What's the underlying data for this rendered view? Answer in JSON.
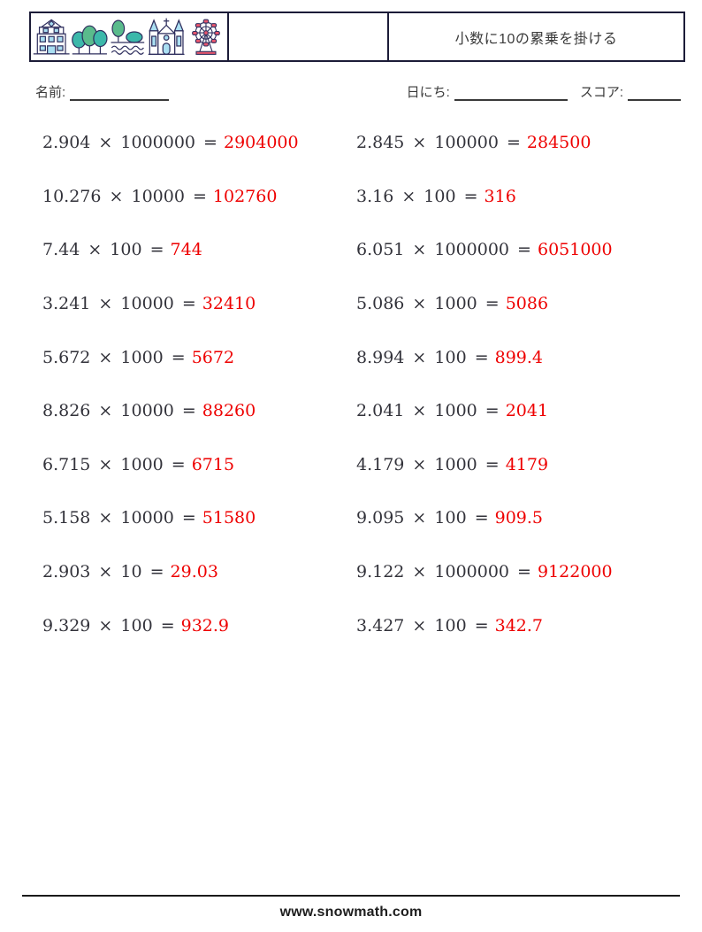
{
  "header": {
    "title": "小数に10の累乗を掛ける",
    "logo_icons": [
      "building-icon",
      "trees-icon",
      "tree-bush-water-icon",
      "church-icon",
      "ferris-wheel-icon"
    ]
  },
  "fields": {
    "name_label": "名前:",
    "date_label": "日にち:",
    "score_label": "スコア:"
  },
  "problems": {
    "left": [
      {
        "expression": "2.904 × 1000000 =",
        "answer": "2904000"
      },
      {
        "expression": "10.276 × 10000 =",
        "answer": "102760"
      },
      {
        "expression": "7.44 × 100 =",
        "answer": "744"
      },
      {
        "expression": "3.241 × 10000 =",
        "answer": "32410"
      },
      {
        "expression": "5.672 × 1000 =",
        "answer": "5672"
      },
      {
        "expression": "8.826 × 10000 =",
        "answer": "88260"
      },
      {
        "expression": "6.715 × 1000 =",
        "answer": "6715"
      },
      {
        "expression": "5.158 × 10000 =",
        "answer": "51580"
      },
      {
        "expression": "2.903 × 10 =",
        "answer": "29.03"
      },
      {
        "expression": "9.329 × 100 =",
        "answer": "932.9"
      }
    ],
    "right": [
      {
        "expression": "2.845 × 100000 =",
        "answer": "284500"
      },
      {
        "expression": "3.16 × 100 =",
        "answer": "316"
      },
      {
        "expression": "6.051 × 1000000 =",
        "answer": "6051000"
      },
      {
        "expression": "5.086 × 1000 =",
        "answer": "5086"
      },
      {
        "expression": "8.994 × 100 =",
        "answer": "899.4"
      },
      {
        "expression": "2.041 × 1000 =",
        "answer": "2041"
      },
      {
        "expression": "4.179 × 1000 =",
        "answer": "4179"
      },
      {
        "expression": "9.095 × 100 =",
        "answer": "909.5"
      },
      {
        "expression": "9.122 × 1000000 =",
        "answer": "9122000"
      },
      {
        "expression": "3.427 × 100 =",
        "answer": "342.7"
      }
    ]
  },
  "footer": {
    "url": "www.snowmath.com"
  },
  "colors": {
    "answer_red": "#ee0000",
    "equation_text": "#32323a",
    "outline_navy": "#2f2f5e",
    "window_blue": "#aadff2",
    "tree_teal": "#3cb8aa",
    "tree_green": "#5abb8c",
    "gondola_pink": "#e8566d"
  }
}
